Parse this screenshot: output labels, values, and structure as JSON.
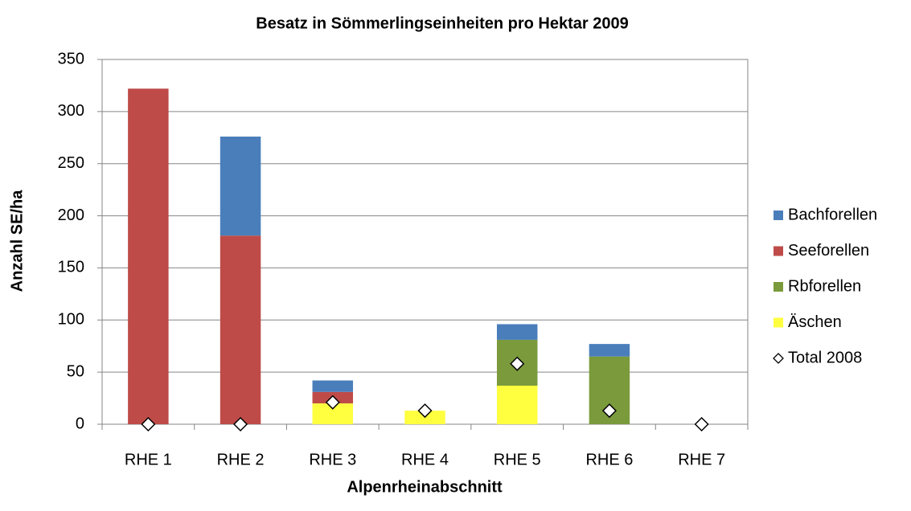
{
  "chart_data": {
    "type": "bar",
    "stacked": true,
    "title": "Besatz in Sömmerlingseinheiten pro Hektar 2009",
    "x_label": "Alpenrheinabschnitt",
    "y_label": "Anzahl SE/ha",
    "categories": [
      "RHE 1",
      "RHE 2",
      "RHE 3",
      "RHE 4",
      "RHE 5",
      "RHE 6",
      "RHE 7"
    ],
    "series": [
      {
        "name": "Bachforellen",
        "color": "#4a7ebb",
        "values": [
          0,
          95,
          11,
          0,
          15,
          12,
          0
        ]
      },
      {
        "name": "Seeforellen",
        "color": "#be4b48",
        "values": [
          322,
          181,
          11,
          0,
          0,
          0,
          0
        ]
      },
      {
        "name": "Rbforellen",
        "color": "#7a9a3c",
        "values": [
          0,
          0,
          0,
          0,
          44,
          65,
          0
        ]
      },
      {
        "name": "Äschen",
        "color": "#ffff40",
        "values": [
          0,
          0,
          20,
          13,
          37,
          0,
          0
        ]
      },
      {
        "name": "Total 2008",
        "color": "#ffffff",
        "marker": "diamond",
        "values": [
          0,
          0,
          21,
          13,
          58,
          13,
          0
        ]
      }
    ],
    "ylim": [
      0,
      350
    ],
    "yticks": [
      0,
      50,
      100,
      150,
      200,
      250,
      300,
      350
    ],
    "grid": true,
    "legend": "right"
  }
}
